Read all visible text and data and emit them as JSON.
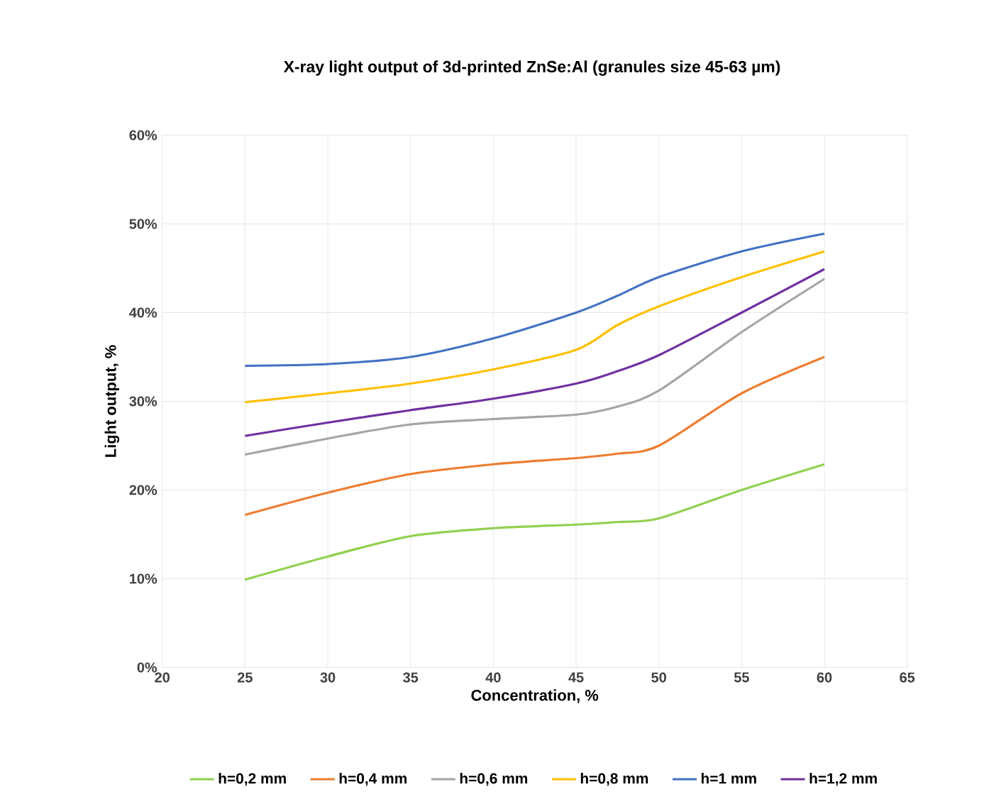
{
  "chart_data": {
    "type": "line",
    "title": "X-ray light output of 3d-printed ZnSe:Al (granules size 45-63 µm)",
    "xlabel": "Concentration, %",
    "ylabel": "Light output, %",
    "x": [
      25,
      30,
      35,
      40,
      45,
      47.5,
      50,
      55,
      60
    ],
    "series": [
      {
        "name": "h=0,2 mm",
        "color": "#92d050",
        "values": [
          9.9,
          12.5,
          14.8,
          15.7,
          16.1,
          16.4,
          16.8,
          20.0,
          22.9
        ]
      },
      {
        "name": "h=0,4 mm",
        "color": "#ed7d31",
        "values": [
          17.2,
          19.7,
          21.8,
          22.9,
          23.6,
          24.1,
          25.0,
          30.9,
          35.0
        ]
      },
      {
        "name": "h=0,6 mm",
        "color": "#a5a5a5",
        "values": [
          24.0,
          25.8,
          27.4,
          28.0,
          28.5,
          29.4,
          31.2,
          37.8,
          43.8
        ]
      },
      {
        "name": "h=0,8 mm",
        "color": "#ffc000",
        "values": [
          29.9,
          30.9,
          32.0,
          33.6,
          35.8,
          38.6,
          40.7,
          44.0,
          46.9
        ]
      },
      {
        "name": "h=1 mm",
        "color": "#4472c4",
        "values": [
          34.0,
          34.2,
          35.0,
          37.1,
          40.0,
          41.9,
          44.0,
          46.9,
          48.9
        ]
      },
      {
        "name": "h=1,2 mm",
        "color": "#7030a0",
        "values": [
          26.1,
          27.6,
          29.0,
          30.3,
          32.0,
          33.4,
          35.2,
          40.0,
          44.9
        ]
      }
    ],
    "xlim": [
      20,
      65
    ],
    "xticks": [
      20,
      25,
      30,
      35,
      40,
      45,
      50,
      55,
      60,
      65
    ],
    "ylim": [
      0,
      60
    ],
    "yticks": [
      {
        "value": 0,
        "label": "0%"
      },
      {
        "value": 10,
        "label": "10%"
      },
      {
        "value": 20,
        "label": "20%"
      },
      {
        "value": 30,
        "label": "30%"
      },
      {
        "value": 40,
        "label": "40%"
      },
      {
        "value": 50,
        "label": "50%"
      },
      {
        "value": 60,
        "label": "60%"
      }
    ],
    "grid": true,
    "legend": "bottom",
    "marker": "none",
    "line_style": "solid"
  }
}
